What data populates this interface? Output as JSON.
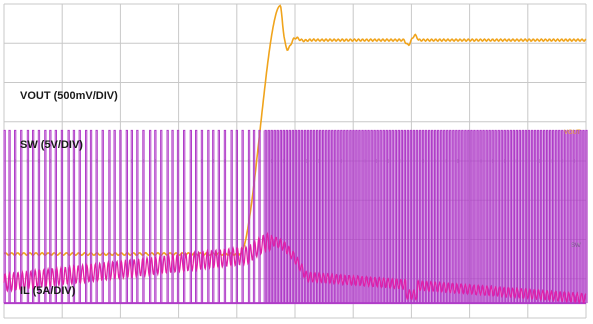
{
  "chart_data": {
    "type": "line",
    "title": "",
    "grid": true,
    "grid_divisions": {
      "x": 10,
      "y": 8
    },
    "series": [
      {
        "name": "VOUT (500mV/DIV)",
        "color": "#f0a41c",
        "tag": "VOUT",
        "tag_color": "#e8a030",
        "trace": "step_with_overshoot",
        "x_range": [
          0,
          10
        ],
        "y_range": [
          0,
          8
        ],
        "values": {
          "before": 1.63,
          "after": 7.08,
          "peak": 7.96,
          "step_start": 4.05,
          "step_end": 4.75
        }
      },
      {
        "name": "SW (5V/DIV)",
        "color": "#b03cc8",
        "tag": "SW",
        "tag_color": "#7a6a8a",
        "trace": "switching",
        "x_range": [
          0,
          10
        ],
        "y_range": [
          0,
          8
        ],
        "values": {
          "low": 0.38,
          "high": 4.78,
          "dense_start": 4.45
        }
      },
      {
        "name": "IL (5A/DIV)",
        "color": "#e020a8",
        "tag": "",
        "tag_color": "#e020a8",
        "trace": "ripple",
        "x_range": [
          0,
          10
        ],
        "y_range": [
          0,
          8
        ],
        "values": {
          "level_start": 0.9,
          "level_peak": 1.6,
          "level_after": 1.05,
          "level_end": 0.5,
          "transient_at": 4.6
        }
      }
    ]
  }
}
